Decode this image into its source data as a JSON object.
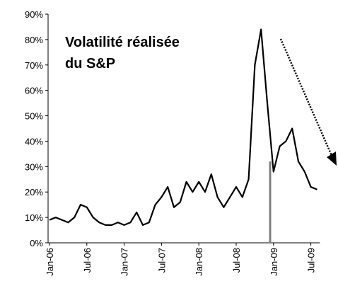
{
  "chart_data": {
    "type": "line",
    "title": [
      "Volatilité réalisée",
      "du S&P"
    ],
    "categories": [
      "Jan-06",
      null,
      null,
      null,
      null,
      null,
      "Jul-06",
      null,
      null,
      null,
      null,
      null,
      "Jan-07",
      null,
      null,
      null,
      null,
      null,
      "Jul-07",
      null,
      null,
      null,
      null,
      null,
      "Jan-08",
      null,
      null,
      null,
      null,
      null,
      "Jul-08",
      null,
      null,
      null,
      null,
      null,
      "Jan-09",
      null,
      null,
      null,
      null,
      null,
      "Jul-09",
      null
    ],
    "series": [
      {
        "name": "Volatilité réalisée du S&P",
        "color": "#000000",
        "values": [
          9,
          10,
          9,
          8,
          10,
          15,
          14,
          10,
          8,
          7,
          7,
          8,
          7,
          8,
          12,
          7,
          8,
          15,
          18,
          22,
          14,
          16,
          24,
          20,
          24,
          20,
          27,
          18,
          14,
          18,
          22,
          18,
          25,
          70,
          84,
          55,
          28,
          38,
          40,
          45,
          32,
          28,
          22,
          21
        ]
      }
    ],
    "ylim": [
      0,
      90
    ],
    "yticks": [
      {
        "value": 0,
        "label": "0%"
      },
      {
        "value": 10,
        "label": "10%"
      },
      {
        "value": 20,
        "label": "20%"
      },
      {
        "value": 30,
        "label": "30%"
      },
      {
        "value": 40,
        "label": "40%"
      },
      {
        "value": 50,
        "label": "50%"
      },
      {
        "value": 60,
        "label": "60%"
      },
      {
        "value": 70,
        "label": "70%"
      },
      {
        "value": 80,
        "label": "80%"
      },
      {
        "value": 90,
        "label": "90%"
      }
    ],
    "grid": false
  }
}
